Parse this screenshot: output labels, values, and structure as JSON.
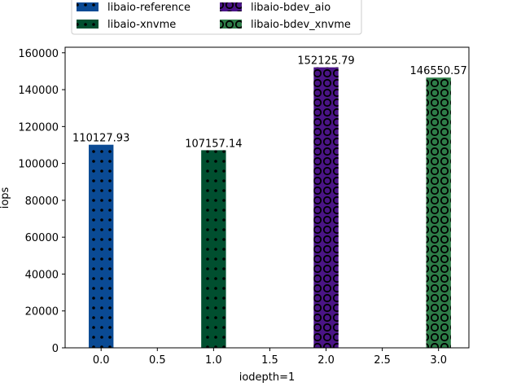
{
  "chart_data": {
    "type": "bar",
    "title": "",
    "xlabel": "iodepth=1",
    "ylabel": "iops",
    "xlim": [
      -0.32,
      3.27
    ],
    "ylim": [
      0,
      163000
    ],
    "x_ticks": [
      "0.0",
      "0.5",
      "1.0",
      "1.5",
      "2.0",
      "2.5",
      "3.0"
    ],
    "y_ticks": [
      "0",
      "20000",
      "40000",
      "60000",
      "80000",
      "100000",
      "120000",
      "140000",
      "160000"
    ],
    "grid": false,
    "legend_position": "top-center",
    "series": [
      {
        "name": "libaio-reference",
        "x": 0,
        "value": 110127.93,
        "label": "110127.93",
        "color": "#0a4a94",
        "pattern": "dots"
      },
      {
        "name": "libaio-xnvme",
        "x": 1,
        "value": 107157.14,
        "label": "107157.14",
        "color": "#004f2f",
        "pattern": "dots"
      },
      {
        "name": "libaio-bdev_aio",
        "x": 2,
        "value": 152125.79,
        "label": "152125.79",
        "color": "#4a1486",
        "pattern": "circles"
      },
      {
        "name": "libaio-bdev_xnvme",
        "x": 3,
        "value": 146550.57,
        "label": "146550.57",
        "color": "#2e7d48",
        "pattern": "circles"
      }
    ]
  }
}
